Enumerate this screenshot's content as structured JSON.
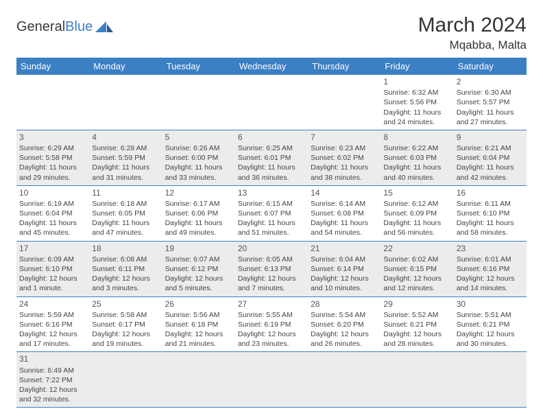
{
  "brand": {
    "part1": "General",
    "part2": "Blue"
  },
  "title": "March 2024",
  "location": "Mqabba, Malta",
  "colors": {
    "header_bg": "#3b7fc4",
    "alt_row": "#ececec",
    "text": "#444444"
  },
  "weekdays": [
    "Sunday",
    "Monday",
    "Tuesday",
    "Wednesday",
    "Thursday",
    "Friday",
    "Saturday"
  ],
  "weeks": [
    [
      null,
      null,
      null,
      null,
      null,
      {
        "d": "1",
        "sr": "Sunrise: 6:32 AM",
        "ss": "Sunset: 5:56 PM",
        "dl": "Daylight: 11 hours and 24 minutes."
      },
      {
        "d": "2",
        "sr": "Sunrise: 6:30 AM",
        "ss": "Sunset: 5:57 PM",
        "dl": "Daylight: 11 hours and 27 minutes."
      }
    ],
    [
      {
        "d": "3",
        "sr": "Sunrise: 6:29 AM",
        "ss": "Sunset: 5:58 PM",
        "dl": "Daylight: 11 hours and 29 minutes."
      },
      {
        "d": "4",
        "sr": "Sunrise: 6:28 AM",
        "ss": "Sunset: 5:59 PM",
        "dl": "Daylight: 11 hours and 31 minutes."
      },
      {
        "d": "5",
        "sr": "Sunrise: 6:26 AM",
        "ss": "Sunset: 6:00 PM",
        "dl": "Daylight: 11 hours and 33 minutes."
      },
      {
        "d": "6",
        "sr": "Sunrise: 6:25 AM",
        "ss": "Sunset: 6:01 PM",
        "dl": "Daylight: 11 hours and 36 minutes."
      },
      {
        "d": "7",
        "sr": "Sunrise: 6:23 AM",
        "ss": "Sunset: 6:02 PM",
        "dl": "Daylight: 11 hours and 38 minutes."
      },
      {
        "d": "8",
        "sr": "Sunrise: 6:22 AM",
        "ss": "Sunset: 6:03 PM",
        "dl": "Daylight: 11 hours and 40 minutes."
      },
      {
        "d": "9",
        "sr": "Sunrise: 6:21 AM",
        "ss": "Sunset: 6:04 PM",
        "dl": "Daylight: 11 hours and 42 minutes."
      }
    ],
    [
      {
        "d": "10",
        "sr": "Sunrise: 6:19 AM",
        "ss": "Sunset: 6:04 PM",
        "dl": "Daylight: 11 hours and 45 minutes."
      },
      {
        "d": "11",
        "sr": "Sunrise: 6:18 AM",
        "ss": "Sunset: 6:05 PM",
        "dl": "Daylight: 11 hours and 47 minutes."
      },
      {
        "d": "12",
        "sr": "Sunrise: 6:17 AM",
        "ss": "Sunset: 6:06 PM",
        "dl": "Daylight: 11 hours and 49 minutes."
      },
      {
        "d": "13",
        "sr": "Sunrise: 6:15 AM",
        "ss": "Sunset: 6:07 PM",
        "dl": "Daylight: 11 hours and 51 minutes."
      },
      {
        "d": "14",
        "sr": "Sunrise: 6:14 AM",
        "ss": "Sunset: 6:08 PM",
        "dl": "Daylight: 11 hours and 54 minutes."
      },
      {
        "d": "15",
        "sr": "Sunrise: 6:12 AM",
        "ss": "Sunset: 6:09 PM",
        "dl": "Daylight: 11 hours and 56 minutes."
      },
      {
        "d": "16",
        "sr": "Sunrise: 6:11 AM",
        "ss": "Sunset: 6:10 PM",
        "dl": "Daylight: 11 hours and 58 minutes."
      }
    ],
    [
      {
        "d": "17",
        "sr": "Sunrise: 6:09 AM",
        "ss": "Sunset: 6:10 PM",
        "dl": "Daylight: 12 hours and 1 minute."
      },
      {
        "d": "18",
        "sr": "Sunrise: 6:08 AM",
        "ss": "Sunset: 6:11 PM",
        "dl": "Daylight: 12 hours and 3 minutes."
      },
      {
        "d": "19",
        "sr": "Sunrise: 6:07 AM",
        "ss": "Sunset: 6:12 PM",
        "dl": "Daylight: 12 hours and 5 minutes."
      },
      {
        "d": "20",
        "sr": "Sunrise: 6:05 AM",
        "ss": "Sunset: 6:13 PM",
        "dl": "Daylight: 12 hours and 7 minutes."
      },
      {
        "d": "21",
        "sr": "Sunrise: 6:04 AM",
        "ss": "Sunset: 6:14 PM",
        "dl": "Daylight: 12 hours and 10 minutes."
      },
      {
        "d": "22",
        "sr": "Sunrise: 6:02 AM",
        "ss": "Sunset: 6:15 PM",
        "dl": "Daylight: 12 hours and 12 minutes."
      },
      {
        "d": "23",
        "sr": "Sunrise: 6:01 AM",
        "ss": "Sunset: 6:16 PM",
        "dl": "Daylight: 12 hours and 14 minutes."
      }
    ],
    [
      {
        "d": "24",
        "sr": "Sunrise: 5:59 AM",
        "ss": "Sunset: 6:16 PM",
        "dl": "Daylight: 12 hours and 17 minutes."
      },
      {
        "d": "25",
        "sr": "Sunrise: 5:58 AM",
        "ss": "Sunset: 6:17 PM",
        "dl": "Daylight: 12 hours and 19 minutes."
      },
      {
        "d": "26",
        "sr": "Sunrise: 5:56 AM",
        "ss": "Sunset: 6:18 PM",
        "dl": "Daylight: 12 hours and 21 minutes."
      },
      {
        "d": "27",
        "sr": "Sunrise: 5:55 AM",
        "ss": "Sunset: 6:19 PM",
        "dl": "Daylight: 12 hours and 23 minutes."
      },
      {
        "d": "28",
        "sr": "Sunrise: 5:54 AM",
        "ss": "Sunset: 6:20 PM",
        "dl": "Daylight: 12 hours and 26 minutes."
      },
      {
        "d": "29",
        "sr": "Sunrise: 5:52 AM",
        "ss": "Sunset: 6:21 PM",
        "dl": "Daylight: 12 hours and 28 minutes."
      },
      {
        "d": "30",
        "sr": "Sunrise: 5:51 AM",
        "ss": "Sunset: 6:21 PM",
        "dl": "Daylight: 12 hours and 30 minutes."
      }
    ],
    [
      {
        "d": "31",
        "sr": "Sunrise: 6:49 AM",
        "ss": "Sunset: 7:22 PM",
        "dl": "Daylight: 12 hours and 32 minutes."
      },
      null,
      null,
      null,
      null,
      null,
      null
    ]
  ]
}
